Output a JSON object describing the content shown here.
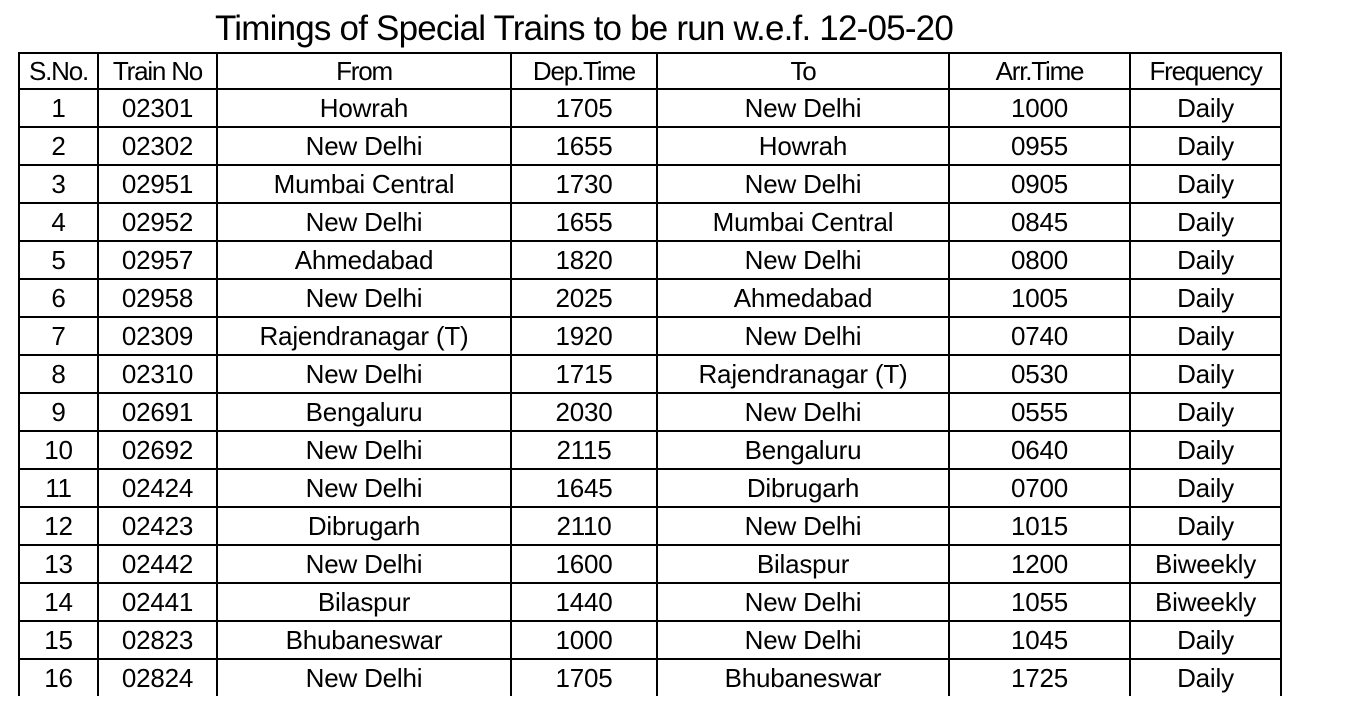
{
  "title": "Timings of Special Trains to be run w.e.f. 12-05-20",
  "table": {
    "headers": [
      "S.No.",
      "Train No",
      "From",
      "Dep.Time",
      "To",
      "Arr.Time",
      "Frequency"
    ],
    "rows": [
      [
        "1",
        "02301",
        "Howrah",
        "1705",
        "New Delhi",
        "1000",
        "Daily"
      ],
      [
        "2",
        "02302",
        "New Delhi",
        "1655",
        "Howrah",
        "0955",
        "Daily"
      ],
      [
        "3",
        "02951",
        "Mumbai Central",
        "1730",
        "New Delhi",
        "0905",
        "Daily"
      ],
      [
        "4",
        "02952",
        "New Delhi",
        "1655",
        "Mumbai Central",
        "0845",
        "Daily"
      ],
      [
        "5",
        "02957",
        "Ahmedabad",
        "1820",
        "New Delhi",
        "0800",
        "Daily"
      ],
      [
        "6",
        "02958",
        "New Delhi",
        "2025",
        "Ahmedabad",
        "1005",
        "Daily"
      ],
      [
        "7",
        "02309",
        "Rajendranagar (T)",
        "1920",
        "New Delhi",
        "0740",
        "Daily"
      ],
      [
        "8",
        "02310",
        "New Delhi",
        "1715",
        "Rajendranagar (T)",
        "0530",
        "Daily"
      ],
      [
        "9",
        "02691",
        "Bengaluru",
        "2030",
        "New Delhi",
        "0555",
        "Daily"
      ],
      [
        "10",
        "02692",
        "New Delhi",
        "2115",
        "Bengaluru",
        "0640",
        "Daily"
      ],
      [
        "11",
        "02424",
        "New Delhi",
        "1645",
        "Dibrugarh",
        "0700",
        "Daily"
      ],
      [
        "12",
        "02423",
        "Dibrugarh",
        "2110",
        "New Delhi",
        "1015",
        "Daily"
      ],
      [
        "13",
        "02442",
        "New Delhi",
        "1600",
        "Bilaspur",
        "1200",
        "Biweekly"
      ],
      [
        "14",
        "02441",
        "Bilaspur",
        "1440",
        "New Delhi",
        "1055",
        "Biweekly"
      ],
      [
        "15",
        "02823",
        "Bhubaneswar",
        "1000",
        "New Delhi",
        "1045",
        "Daily"
      ],
      [
        "16",
        "02824",
        "New Delhi",
        "1705",
        "Bhubaneswar",
        "1725",
        "Daily"
      ]
    ]
  }
}
